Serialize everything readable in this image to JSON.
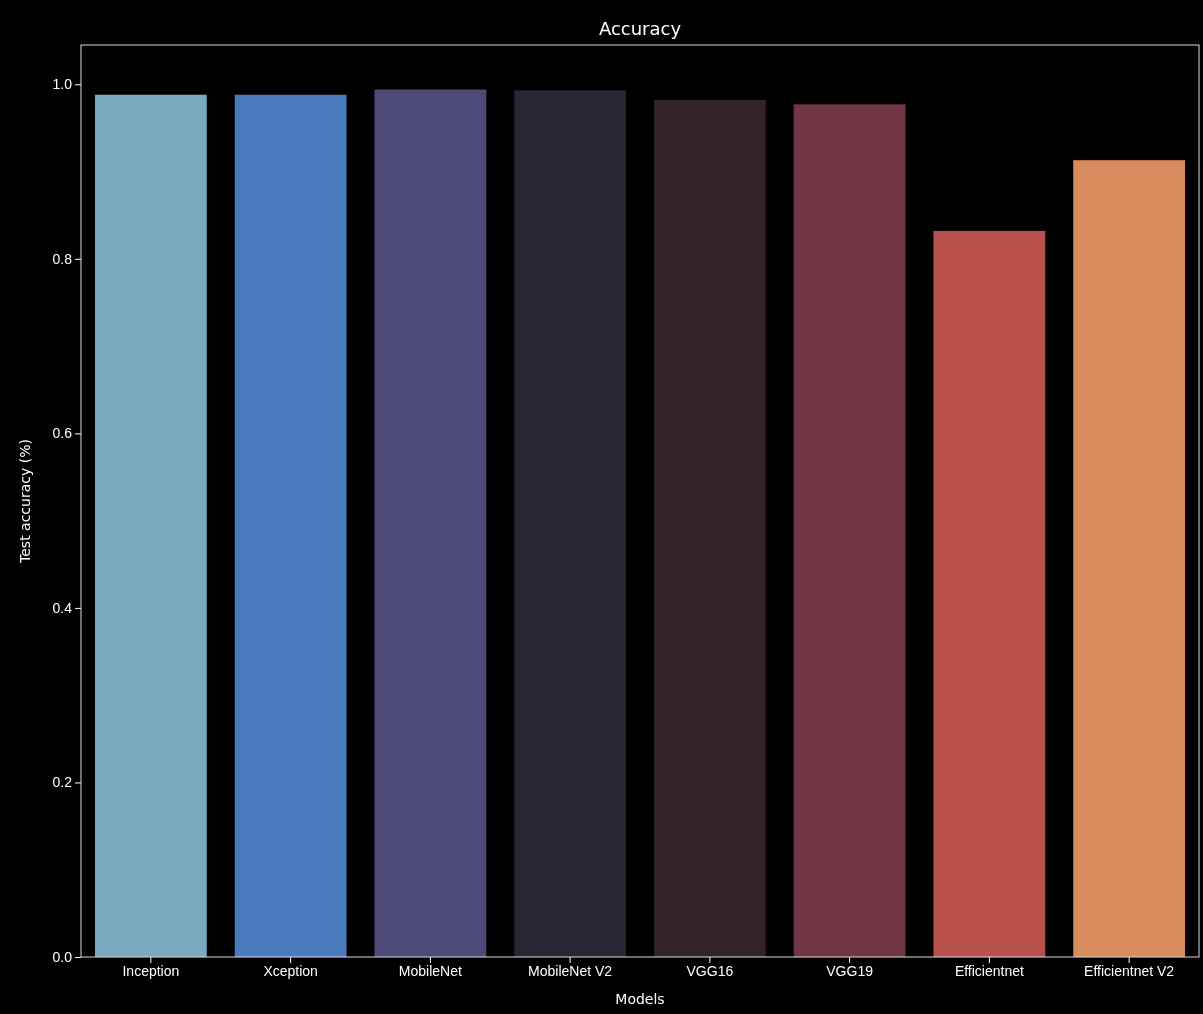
{
  "chart_data": {
    "type": "bar",
    "title": "Accuracy",
    "xlabel": "Models",
    "ylabel": "Test accuracy (%)",
    "categories": [
      "Inception",
      "Xception",
      "MobileNet",
      "MobileNet V2",
      "VGG16",
      "VGG19",
      "Efficientnet",
      "Efficientnet V2"
    ],
    "values": [
      0.988,
      0.988,
      0.994,
      0.993,
      0.982,
      0.977,
      0.832,
      0.913
    ],
    "colors": [
      "#78abc0",
      "#4a7bbd",
      "#4d4a7a",
      "#272633",
      "#332226",
      "#713643",
      "#b8504c",
      "#d98c5d"
    ],
    "ylim": [
      0,
      1.045
    ],
    "yticks": [
      {
        "value": 0,
        "label": "0.0"
      },
      {
        "value": 0.2,
        "label": "0.2"
      },
      {
        "value": 0.4,
        "label": "0.4"
      },
      {
        "value": 0.6,
        "label": "0.6"
      },
      {
        "value": 0.8,
        "label": "0.8"
      },
      {
        "value": 1,
        "label": "1.0"
      }
    ]
  }
}
